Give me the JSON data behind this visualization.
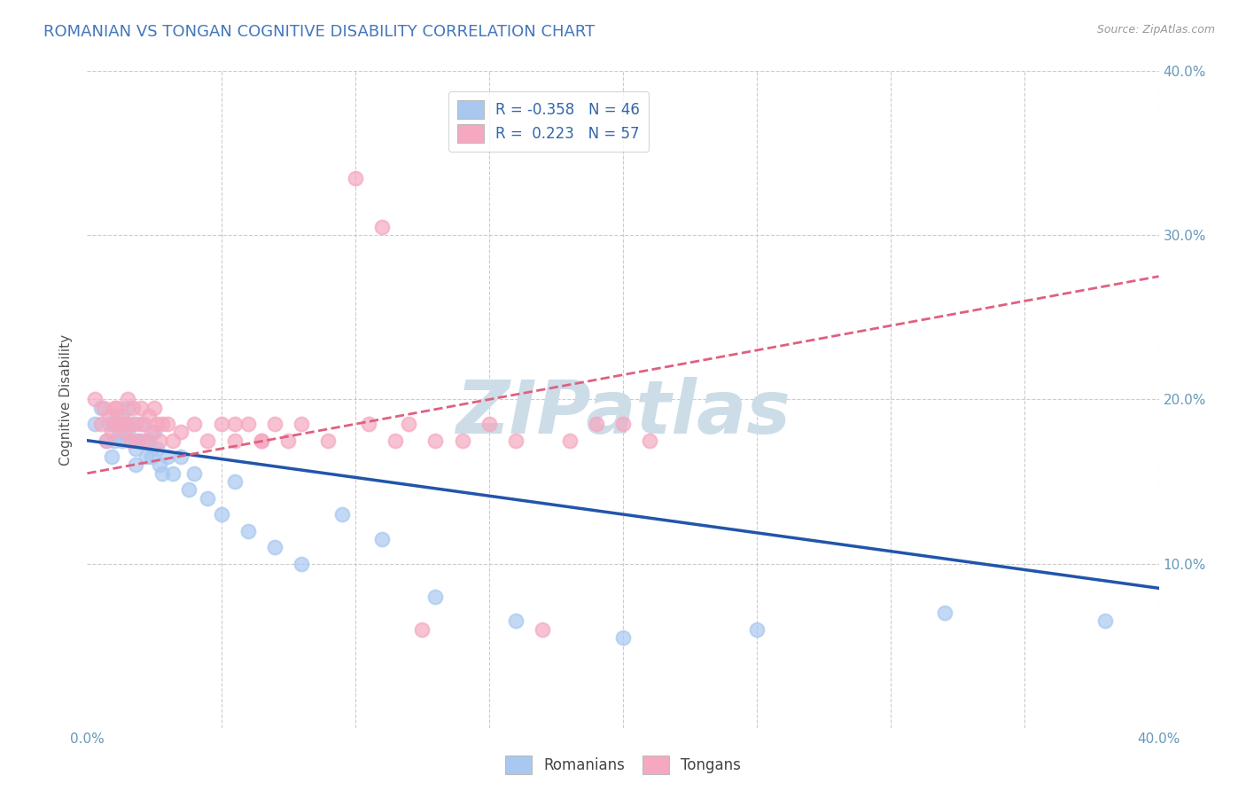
{
  "title": "ROMANIAN VS TONGAN COGNITIVE DISABILITY CORRELATION CHART",
  "source": "Source: ZipAtlas.com",
  "ylabel": "Cognitive Disability",
  "xlim": [
    0.0,
    0.4
  ],
  "ylim": [
    0.0,
    0.4
  ],
  "romanian_R": -0.358,
  "romanian_N": 46,
  "tongan_R": 0.223,
  "tongan_N": 57,
  "romanian_color": "#A8C8F0",
  "tongan_color": "#F5A8C0",
  "romanian_line_color": "#2255AA",
  "tongan_line_color": "#E06080",
  "background_color": "#FFFFFF",
  "grid_color": "#CCCCCC",
  "title_color": "#4477BB",
  "axis_label_color": "#555555",
  "tick_color": "#6699BB",
  "watermark": "ZIPatlas",
  "watermark_color": "#CCDDE8",
  "ro_line_start_y": 0.175,
  "ro_line_end_y": 0.085,
  "to_line_start_y": 0.155,
  "to_line_end_y": 0.275,
  "romanians_x": [
    0.003,
    0.005,
    0.007,
    0.008,
    0.009,
    0.01,
    0.01,
    0.011,
    0.012,
    0.013,
    0.014,
    0.015,
    0.015,
    0.016,
    0.017,
    0.018,
    0.018,
    0.019,
    0.02,
    0.021,
    0.022,
    0.023,
    0.024,
    0.025,
    0.026,
    0.027,
    0.028,
    0.03,
    0.032,
    0.035,
    0.038,
    0.04,
    0.045,
    0.05,
    0.055,
    0.06,
    0.07,
    0.08,
    0.095,
    0.11,
    0.13,
    0.16,
    0.2,
    0.25,
    0.32,
    0.38
  ],
  "romanians_y": [
    0.185,
    0.195,
    0.175,
    0.185,
    0.165,
    0.185,
    0.175,
    0.19,
    0.18,
    0.175,
    0.185,
    0.195,
    0.18,
    0.175,
    0.185,
    0.17,
    0.16,
    0.175,
    0.185,
    0.175,
    0.165,
    0.175,
    0.165,
    0.18,
    0.17,
    0.16,
    0.155,
    0.165,
    0.155,
    0.165,
    0.145,
    0.155,
    0.14,
    0.13,
    0.15,
    0.12,
    0.11,
    0.1,
    0.13,
    0.115,
    0.08,
    0.065,
    0.055,
    0.06,
    0.07,
    0.065
  ],
  "tongans_x": [
    0.003,
    0.005,
    0.006,
    0.007,
    0.008,
    0.009,
    0.01,
    0.01,
    0.011,
    0.012,
    0.013,
    0.014,
    0.015,
    0.015,
    0.016,
    0.017,
    0.018,
    0.019,
    0.02,
    0.021,
    0.022,
    0.023,
    0.024,
    0.025,
    0.026,
    0.027,
    0.028,
    0.03,
    0.032,
    0.035,
    0.04,
    0.045,
    0.05,
    0.055,
    0.06,
    0.065,
    0.07,
    0.075,
    0.08,
    0.09,
    0.1,
    0.11,
    0.12,
    0.13,
    0.14,
    0.15,
    0.16,
    0.17,
    0.18,
    0.19,
    0.2,
    0.21,
    0.105,
    0.115,
    0.125,
    0.055,
    0.065
  ],
  "tongans_y": [
    0.2,
    0.185,
    0.195,
    0.175,
    0.19,
    0.18,
    0.195,
    0.185,
    0.195,
    0.185,
    0.19,
    0.18,
    0.2,
    0.185,
    0.175,
    0.195,
    0.185,
    0.175,
    0.195,
    0.185,
    0.175,
    0.19,
    0.18,
    0.195,
    0.185,
    0.175,
    0.185,
    0.185,
    0.175,
    0.18,
    0.185,
    0.175,
    0.185,
    0.175,
    0.185,
    0.175,
    0.185,
    0.175,
    0.185,
    0.175,
    0.335,
    0.305,
    0.185,
    0.175,
    0.175,
    0.185,
    0.175,
    0.06,
    0.175,
    0.185,
    0.185,
    0.175,
    0.185,
    0.175,
    0.06,
    0.185,
    0.175
  ]
}
